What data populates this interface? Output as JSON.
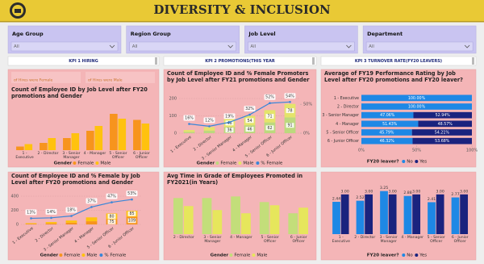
{
  "header": {
    "title": "DIVERSITY & INCLUSION"
  },
  "filters": [
    {
      "label": "Age Group",
      "value": "All"
    },
    {
      "label": "Region Group",
      "value": "All"
    },
    {
      "label": "Job Level",
      "value": "All"
    },
    {
      "label": "Department",
      "value": "All"
    }
  ],
  "tabs": [
    "KPI 1 HIRING",
    "KPI 2 PROMOTIONS(THIS YEAR",
    "KPI 3 TURNOVER RATE(FY20 LEAVERS)"
  ],
  "hiring_cards": [
    "of Hires were Female",
    "of Hires were Male"
  ],
  "chart_data": [
    {
      "type": "bar",
      "title": "Count of Employee ID by Job Level after FY20 promotions and Gender",
      "categories": [
        "1 - Executive",
        "2 - Director",
        "3 - Senior Manager",
        "4 - Manager",
        "5 - Senior Officer",
        "6 - Junior Officer"
      ],
      "legend_title": "Gender",
      "series": [
        {
          "name": "Female",
          "color": "#f7941d",
          "values": [
            3,
            6,
            10,
            16,
            30,
            25
          ]
        },
        {
          "name": "Male",
          "color": "#ffc20e",
          "values": [
            5,
            10,
            14,
            20,
            26,
            22
          ]
        }
      ]
    },
    {
      "type": "combo",
      "title": "Count of Employee ID and % Female Promoters by Job Level after FY21 promotions and Gender",
      "categories": [
        "1 - Executive",
        "2 - Director",
        "3 - Senior Manager",
        "4 - Manager",
        "5 - Senior Officer",
        "6 - Junior Officer"
      ],
      "stacked": true,
      "legend_title": "Gender",
      "ylim": [
        0,
        200
      ],
      "yticks": [
        0,
        100,
        200
      ],
      "y2lim": [
        0,
        60
      ],
      "y2ticks": [
        {
          "value": 0,
          "label": "0%"
        },
        {
          "value": 50,
          "label": "50%"
        }
      ],
      "series": [
        {
          "name": "Female",
          "color": "#bcd97e",
          "values": [
            8,
            15,
            36,
            46,
            62,
            91
          ],
          "data_labels": true
        },
        {
          "name": "Male",
          "color": "#e4e46a",
          "values": [
            10,
            20,
            46,
            54,
            71,
            78
          ],
          "data_labels": true
        },
        {
          "name": "% Female",
          "type": "line",
          "axis": "y2",
          "color": "#3a86d8",
          "values": [
            16,
            12,
            19,
            32,
            52,
            54
          ],
          "value_labels": [
            "16%",
            "12%",
            "19%",
            "32%",
            "52%",
            "54%"
          ],
          "data_labels": true
        }
      ]
    },
    {
      "type": "barh",
      "title": "Average of FY19 Performance Rating by Job Level after FY20 promotions and FY20 leaver?",
      "categories": [
        "1 - Executive",
        "2 - Director",
        "3 - Senior Manager",
        "4 - Manager",
        "5 - Senior Officer",
        "6 - Junior Officer"
      ],
      "stacked": true,
      "legend_title": "FY20 leaver?",
      "xlim": [
        0,
        100
      ],
      "xticks": [
        {
          "value": 0,
          "label": "0%"
        },
        {
          "value": 50,
          "label": "50%"
        },
        {
          "value": 100,
          "label": "100%"
        }
      ],
      "series": [
        {
          "name": "No",
          "color": "#1e88e5",
          "values": [
            100,
            100,
            47.06,
            51.43,
            45.79,
            46.32
          ],
          "value_labels": [
            "100.00%",
            "100.00%",
            "47.06%",
            "51.43%",
            "45.79%",
            "46.32%"
          ],
          "data_labels": true
        },
        {
          "name": "Yes",
          "color": "#1a237e",
          "values": [
            0,
            0,
            52.94,
            48.57,
            54.21,
            53.68
          ],
          "value_labels": [
            null,
            null,
            "52.94%",
            "48.57%",
            "54.21%",
            "53.68%"
          ],
          "data_labels": true
        }
      ]
    },
    {
      "type": "combo",
      "title": "Count of Employee ID and % Female by Job Level after FY20 promotions and Gender",
      "categories": [
        "1 - Executive",
        "2 - Director",
        "3 - Senior Manager",
        "4 - Manager",
        "5 - Senior Officer",
        "6 - Junior Officer"
      ],
      "stacked": true,
      "legend_title": "Gender",
      "ylim": [
        0,
        400
      ],
      "yticks": [
        0,
        200,
        400
      ],
      "y2lim": [
        0,
        60
      ],
      "series": [
        {
          "name": "Female",
          "color": "#f7941d",
          "values": [
            8,
            14,
            25,
            45,
            75,
            109
          ],
          "data_labels": true
        },
        {
          "name": "Male",
          "color": "#ffc20e",
          "values": [
            10,
            20,
            30,
            55,
            80,
            85
          ],
          "data_labels": true
        },
        {
          "name": "% Female",
          "type": "line",
          "axis": "y2",
          "color": "#3a86d8",
          "values": [
            13,
            14,
            18,
            37,
            47,
            53
          ],
          "value_labels": [
            "13%",
            "14%",
            "18%",
            "37%",
            "47%",
            "53%"
          ],
          "data_labels": true
        }
      ]
    },
    {
      "type": "bar",
      "title": "Avg Time in Grade of Employees Promoted in FY2021(in Years)",
      "categories": [
        "2 - Director",
        "3 - Senior Manager",
        "4 - Manager",
        "5 - Senior Officer",
        "6 - Junior Officer"
      ],
      "legend_title": "Gender",
      "series": [
        {
          "name": "Female",
          "color": "#c3de7a",
          "values": [
            4.5,
            4.5,
            4.7,
            4.0,
            2.6
          ]
        },
        {
          "name": "Male",
          "color": "#e6e65c",
          "values": [
            3.5,
            3.0,
            2.6,
            3.6,
            3.3
          ]
        }
      ]
    },
    {
      "type": "bar",
      "categories": [
        "1 - Executive",
        "2 - Director",
        "3 - Senior Manager",
        "4 - Manager",
        "5 - Senior Officer",
        "6 - Junior Officer"
      ],
      "legend_title": "FY20 leaver?",
      "series": [
        {
          "name": "No",
          "color": "#1e88e5",
          "values": [
            2.44,
            2.52,
            3.25,
            2.88,
            2.41,
            2.77
          ],
          "data_labels": true
        },
        {
          "name": "Yes",
          "color": "#1a237e",
          "values": [
            3,
            3,
            3,
            3,
            3,
            3
          ],
          "value_labels": [
            "3.00",
            "3.00",
            "3.00",
            "3.00",
            "3.00",
            "3.00"
          ],
          "data_labels": true
        }
      ]
    }
  ]
}
